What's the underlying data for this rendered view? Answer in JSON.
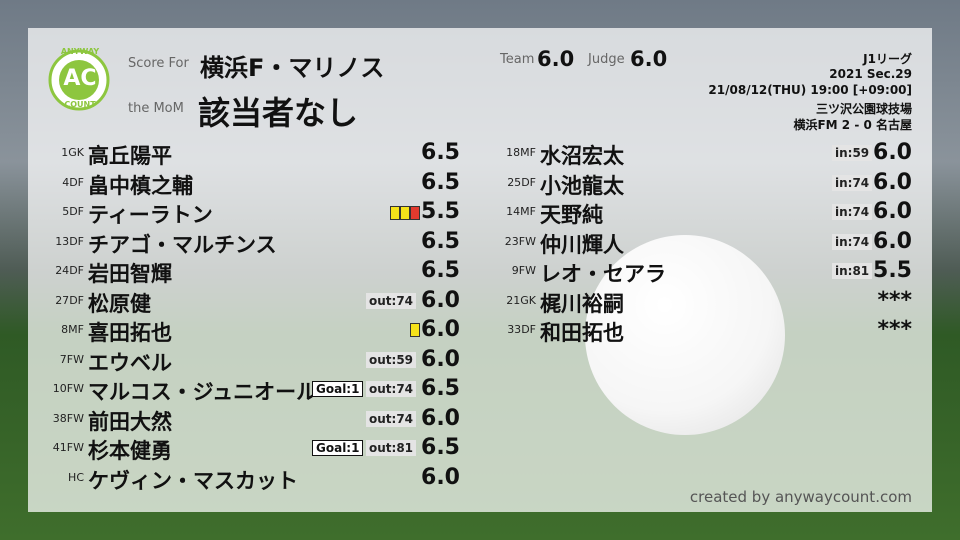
{
  "header": {
    "logo": {
      "top": "ANYWAY",
      "main": "AC",
      "bottom": "COUNT"
    },
    "score_for_label": "Score For",
    "team": "横浜F・マリノス",
    "mom_label": "the MoM",
    "mom": "該当者なし",
    "team_label": "Team",
    "team_score": "6.0",
    "judge_label": "Judge",
    "judge_score": "6.0",
    "match": [
      "J1リーグ",
      "2021 Sec.29",
      "21/08/12(THU) 19:00 [+09:00]",
      "三ツ沢公園球技場",
      "横浜FM 2 - 0 名古屋"
    ]
  },
  "left_players": [
    {
      "num": "1",
      "pos": "GK",
      "name": "高丘陽平",
      "score": "6.5"
    },
    {
      "num": "4",
      "pos": "DF",
      "name": "畠中槙之輔",
      "score": "6.5"
    },
    {
      "num": "5",
      "pos": "DF",
      "name": "ティーラトン",
      "score": "5.5"
    },
    {
      "num": "13",
      "pos": "DF",
      "name": "チアゴ・マルチンス",
      "score": "6.5"
    },
    {
      "num": "24",
      "pos": "DF",
      "name": "岩田智輝",
      "score": "6.5"
    },
    {
      "num": "27",
      "pos": "DF",
      "name": "松原健",
      "score": "6.0",
      "sub": "out:74"
    },
    {
      "num": "8",
      "pos": "MF",
      "name": "喜田拓也",
      "score": "6.0"
    },
    {
      "num": "7",
      "pos": "FW",
      "name": "エウベル",
      "score": "6.0",
      "sub": "out:59"
    },
    {
      "num": "10",
      "pos": "FW",
      "name": "マルコス・ジュニオール",
      "score": "6.5",
      "sub": "out:74",
      "goal": "Goal:1"
    },
    {
      "num": "38",
      "pos": "FW",
      "name": "前田大然",
      "score": "6.0",
      "sub": "out:74"
    },
    {
      "num": "41",
      "pos": "FW",
      "name": "杉本健勇",
      "score": "6.5",
      "sub": "out:81",
      "goal": "Goal:1"
    },
    {
      "pos": "HC",
      "name": "ケヴィン・マスカット",
      "score": "6.0"
    }
  ],
  "right_players": [
    {
      "num": "18",
      "pos": "MF",
      "name": "水沼宏太",
      "score": "6.0",
      "sub": "in:59"
    },
    {
      "num": "25",
      "pos": "DF",
      "name": "小池龍太",
      "score": "6.0",
      "sub": "in:74"
    },
    {
      "num": "14",
      "pos": "MF",
      "name": "天野純",
      "score": "6.0",
      "sub": "in:74"
    },
    {
      "num": "23",
      "pos": "FW",
      "name": "仲川輝人",
      "score": "6.0",
      "sub": "in:74"
    },
    {
      "num": "9",
      "pos": "FW",
      "name": "レオ・セアラ",
      "score": "5.5",
      "sub": "in:81"
    },
    {
      "num": "21",
      "pos": "GK",
      "name": "梶川裕嗣",
      "score": "***"
    },
    {
      "num": "33",
      "pos": "DF",
      "name": "和田拓也",
      "score": "***"
    }
  ],
  "footer": "created by anywaycount.com"
}
